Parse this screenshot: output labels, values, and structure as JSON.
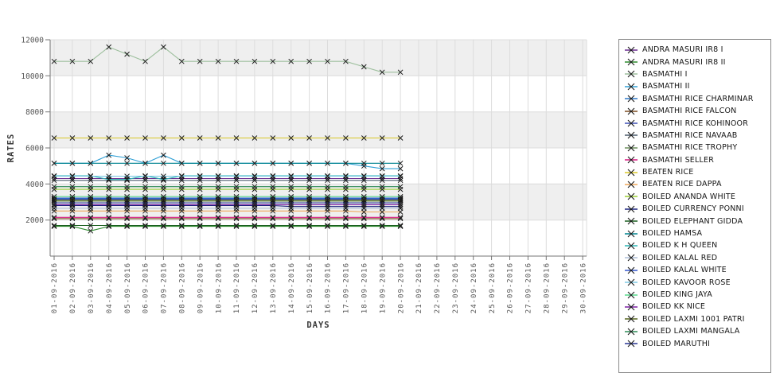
{
  "chart_data": {
    "type": "line",
    "title": "",
    "xlabel": "DAYS",
    "ylabel": "RATES",
    "x": [
      "01-09-2016",
      "02-09-2016",
      "03-09-2016",
      "04-09-2016",
      "05-09-2016",
      "06-09-2016",
      "07-09-2016",
      "08-09-2016",
      "09-09-2016",
      "10-09-2016",
      "11-09-2016",
      "12-09-2016",
      "13-09-2016",
      "14-09-2016",
      "15-09-2016",
      "16-09-2016",
      "17-09-2016",
      "18-09-2016",
      "19-09-2016",
      "20-09-2016",
      "21-09-2016",
      "22-09-2016",
      "23-09-2016",
      "24-09-2016",
      "25-09-2016",
      "26-09-2016",
      "27-09-2016",
      "28-09-2016",
      "29-09-2016",
      "30-09-2016"
    ],
    "days_with_data": 20,
    "ylim": [
      0,
      12000
    ],
    "yticks": [
      2000,
      4000,
      6000,
      8000,
      10000,
      12000
    ],
    "ytick_labels": [
      "2000",
      "4000",
      "6000",
      "8000",
      "10000",
      "12000"
    ],
    "grid": true,
    "band_color": "#efefef",
    "grid_color": "#dcdcdc",
    "axis_color": "#767676",
    "tick_label_color": "#555555",
    "marker": "x",
    "marker_color": "#1a1a1a",
    "legend_position": "right",
    "series": [
      {
        "name": "ANDRA MASURI IR8 I",
        "color": "#6a2c91",
        "values": [
          4300,
          4300,
          4300,
          4300,
          4300,
          4300,
          4300,
          4300,
          4300,
          4300,
          4300,
          4300,
          4300,
          4300,
          4300,
          4300,
          4300,
          4300,
          4300,
          4300
        ]
      },
      {
        "name": "ANDRA MASURI IR8 II",
        "color": "#2e8b2e",
        "values": [
          1650,
          1650,
          1400,
          1650,
          1650,
          1650,
          1650,
          1650,
          1650,
          1650,
          1650,
          1650,
          1650,
          1650,
          1650,
          1650,
          1650,
          1650,
          1650,
          1650
        ]
      },
      {
        "name": "BASMATHI I",
        "color": "#9dbf9d",
        "values": [
          10800,
          10800,
          10800,
          11600,
          11200,
          10800,
          11600,
          10800,
          10800,
          10800,
          10800,
          10800,
          10800,
          10800,
          10800,
          10800,
          10800,
          10500,
          10200,
          10200
        ]
      },
      {
        "name": "BASMATHI II",
        "color": "#30a0d6",
        "values": [
          5150,
          5150,
          5150,
          5600,
          5450,
          5150,
          5600,
          5150,
          5150,
          5150,
          5150,
          5150,
          5150,
          5150,
          5150,
          5150,
          5150,
          5000,
          4850,
          4850
        ]
      },
      {
        "name": "BASMATHI RICE CHARMINAR",
        "color": "#2e79c9",
        "values": [
          3200,
          3200,
          3200,
          3200,
          3200,
          3200,
          3200,
          3200,
          3200,
          3200,
          3200,
          3200,
          3200,
          3200,
          3200,
          3200,
          3200,
          3200,
          3200,
          3200
        ]
      },
      {
        "name": "BASMATHI RICE FALCON",
        "color": "#7a4a21",
        "values": [
          2080,
          2080,
          2080,
          2080,
          2080,
          2080,
          2080,
          2080,
          2080,
          2080,
          2080,
          2080,
          2080,
          2080,
          2080,
          2080,
          2080,
          2080,
          2080,
          2080
        ]
      },
      {
        "name": "BASMATHI RICE KOHINOOR",
        "color": "#3f51b5",
        "values": [
          3150,
          3150,
          3150,
          3150,
          3150,
          3150,
          3150,
          3150,
          3150,
          3150,
          3150,
          3150,
          3150,
          3150,
          3150,
          3150,
          3150,
          3150,
          3150,
          3150
        ]
      },
      {
        "name": "BASMATHI RICE NAVAAB",
        "color": "#4a5a6a",
        "values": [
          4200,
          4200,
          4200,
          4200,
          4200,
          4200,
          4200,
          4200,
          4200,
          4200,
          4200,
          4200,
          4200,
          4200,
          4200,
          4200,
          4200,
          4200,
          4200,
          4200
        ]
      },
      {
        "name": "BASMATHI RICE TROPHY",
        "color": "#6b8e5a",
        "values": [
          3050,
          3050,
          3050,
          3050,
          3050,
          3050,
          3050,
          3050,
          3050,
          3050,
          3050,
          3050,
          3050,
          3050,
          3050,
          3050,
          3050,
          3050,
          3050,
          3050
        ]
      },
      {
        "name": "BASMATHI SELLER",
        "color": "#d6187f",
        "values": [
          2150,
          2150,
          2150,
          2150,
          2150,
          2150,
          2150,
          2150,
          2150,
          2150,
          2150,
          2150,
          2150,
          2150,
          2150,
          2150,
          2150,
          2150,
          2150,
          2150
        ]
      },
      {
        "name": "BEATEN RICE",
        "color": "#d9c727",
        "values": [
          6550,
          6550,
          6550,
          6550,
          6550,
          6550,
          6550,
          6550,
          6550,
          6550,
          6550,
          6550,
          6550,
          6550,
          6550,
          6550,
          6550,
          6550,
          6550,
          6550
        ]
      },
      {
        "name": "BEATEN RICE DAPPA",
        "color": "#f0a85a",
        "values": [
          2500,
          2500,
          2500,
          2500,
          2500,
          2500,
          2500,
          2500,
          2500,
          2500,
          2500,
          2500,
          2500,
          2500,
          2500,
          2500,
          2500,
          2450,
          2450,
          2450
        ]
      },
      {
        "name": "BOILED ANANDA WHITE",
        "color": "#9acd32",
        "values": [
          3700,
          3700,
          3700,
          3700,
          3700,
          3700,
          3700,
          3700,
          3700,
          3700,
          3700,
          3700,
          3700,
          3700,
          3700,
          3700,
          3700,
          3700,
          3700,
          3700
        ]
      },
      {
        "name": "BOILED CURRENCY PONNI",
        "color": "#1a237e",
        "values": [
          2800,
          2800,
          2800,
          2800,
          2800,
          2800,
          2800,
          2800,
          2800,
          2800,
          2800,
          2800,
          2800,
          2750,
          2750,
          2750,
          2750,
          2750,
          2750,
          2750
        ]
      },
      {
        "name": "BOILED ELEPHANT GIDDA",
        "color": "#1b5e20",
        "values": [
          1700,
          1700,
          1700,
          1700,
          1700,
          1700,
          1700,
          1700,
          1700,
          1700,
          1700,
          1700,
          1700,
          1700,
          1700,
          1700,
          1700,
          1700,
          1700,
          1700
        ]
      },
      {
        "name": "BOILED HAMSA",
        "color": "#00838f",
        "values": [
          5150,
          5150,
          5150,
          5150,
          5150,
          5150,
          5150,
          5150,
          5150,
          5150,
          5150,
          5150,
          5150,
          5150,
          5150,
          5150,
          5150,
          5150,
          5150,
          5150
        ]
      },
      {
        "name": "BOILED K H QUEEN",
        "color": "#2ab5b5",
        "values": [
          4450,
          4450,
          4450,
          4250,
          4250,
          4450,
          4250,
          4450,
          4450,
          4450,
          4450,
          4450,
          4450,
          4450,
          4450,
          4450,
          4450,
          4450,
          4450,
          4450
        ]
      },
      {
        "name": "BOILED KALAL RED",
        "color": "#aebfd8",
        "values": [
          2650,
          2650,
          2650,
          2650,
          2650,
          2650,
          2650,
          2650,
          2650,
          2650,
          2650,
          2650,
          2650,
          2650,
          2650,
          2650,
          2650,
          2650,
          2650,
          2650
        ]
      },
      {
        "name": "BOILED KALAL WHITE",
        "color": "#3355cc",
        "values": [
          3220,
          3220,
          3220,
          3220,
          3220,
          3220,
          3220,
          3220,
          3220,
          3220,
          3220,
          3220,
          3220,
          3220,
          3220,
          3220,
          3220,
          3220,
          3220,
          3220
        ]
      },
      {
        "name": "BOILED KAVOOR ROSE",
        "color": "#7ec8e3",
        "values": [
          4430,
          4430,
          4430,
          4430,
          4430,
          4430,
          4430,
          4430,
          4430,
          4430,
          4430,
          4430,
          4430,
          4430,
          4430,
          4430,
          4430,
          4430,
          4430,
          4430
        ]
      },
      {
        "name": "BOILED KING JAYA",
        "color": "#57d98a",
        "values": [
          3300,
          3300,
          3300,
          3300,
          3300,
          3300,
          3300,
          3300,
          3300,
          3300,
          3300,
          3300,
          3300,
          3300,
          3300,
          3300,
          3300,
          3300,
          3300,
          3300
        ]
      },
      {
        "name": "BOILED KK NICE",
        "color": "#7b1fa2",
        "values": [
          2850,
          2850,
          2850,
          2850,
          2850,
          2850,
          2850,
          2850,
          2850,
          2850,
          2850,
          2850,
          2850,
          2850,
          2850,
          2850,
          2850,
          2850,
          2850,
          2850
        ]
      },
      {
        "name": "BOILED LAXMI 1001 PATRI",
        "color": "#55641f",
        "values": [
          3100,
          3100,
          3100,
          3100,
          3100,
          3100,
          3100,
          3100,
          3100,
          3100,
          3100,
          3100,
          3100,
          3100,
          3100,
          3100,
          3100,
          3100,
          3100,
          3100
        ]
      },
      {
        "name": "BOILED LAXMI MANGALA",
        "color": "#2e8b57",
        "values": [
          3850,
          3850,
          3850,
          3850,
          3850,
          3850,
          3850,
          3850,
          3850,
          3850,
          3850,
          3850,
          3850,
          3850,
          3850,
          3850,
          3850,
          3850,
          3850,
          3850
        ]
      },
      {
        "name": "BOILED MARUTHI",
        "color": "#283593",
        "values": [
          2950,
          2950,
          2950,
          2950,
          2950,
          2950,
          2950,
          2950,
          2950,
          2950,
          2950,
          2950,
          2950,
          2950,
          2950,
          2950,
          2950,
          2950,
          2950,
          2950
        ]
      }
    ]
  }
}
